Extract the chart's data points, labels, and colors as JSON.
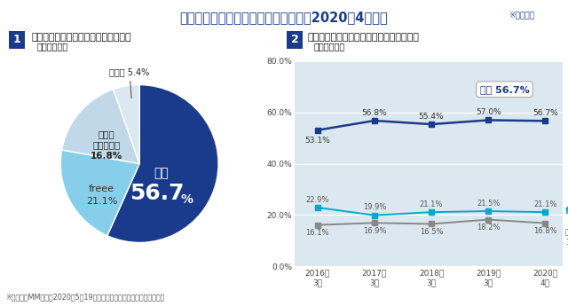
{
  "title": "クラウド会計ソフトの利用状況調査（2020年4月末）",
  "title_note": "※一部抜粹",
  "bg_color": "#ffffff",
  "header_color": "#1a3a8c",
  "section1_title": "クラウド会計ソフトの事業者別シェア",
  "section1_sub": "（単一回答）",
  "section2_title": "クラウド会計ソフトの事業者シェアの推移",
  "section2_sub": "（単一回答）",
  "footnote": "※株式会示MM総研が2020年5月19日に発表した内容を元に弥生にて作成",
  "pie_values": [
    56.7,
    21.1,
    16.8,
    5.4
  ],
  "pie_labels": [
    "弥生",
    "freee",
    "マネー\nフォワード",
    "その他"
  ],
  "pie_colors": [
    "#1a3a8c",
    "#87ceeb",
    "#c0d8e8",
    "#dce8f0"
  ],
  "line_years": [
    "2016年\n3月",
    "2017年\n3月",
    "2018年\n3月",
    "2019年\n3月",
    "2020年\n4月"
  ],
  "yayoi_data": [
    53.1,
    56.8,
    55.4,
    57.0,
    56.7
  ],
  "freee_data": [
    22.9,
    19.9,
    21.1,
    21.5,
    21.1
  ],
  "money_data": [
    16.1,
    16.9,
    16.5,
    18.2,
    16.8
  ],
  "yayoi_color": "#1a3a8c",
  "freee_color": "#00aacc",
  "money_color": "#888888",
  "plot_bg_color": "#dce8f0",
  "ylim": [
    0,
    80
  ],
  "yticks": [
    0,
    20,
    40,
    60,
    80
  ],
  "ytick_labels": [
    "0.0%",
    "20.0%",
    "40.0%",
    "60.0%",
    "80.0%"
  ],
  "num_bg_color": "#1a3a8c",
  "num_text_color": "#ffffff"
}
